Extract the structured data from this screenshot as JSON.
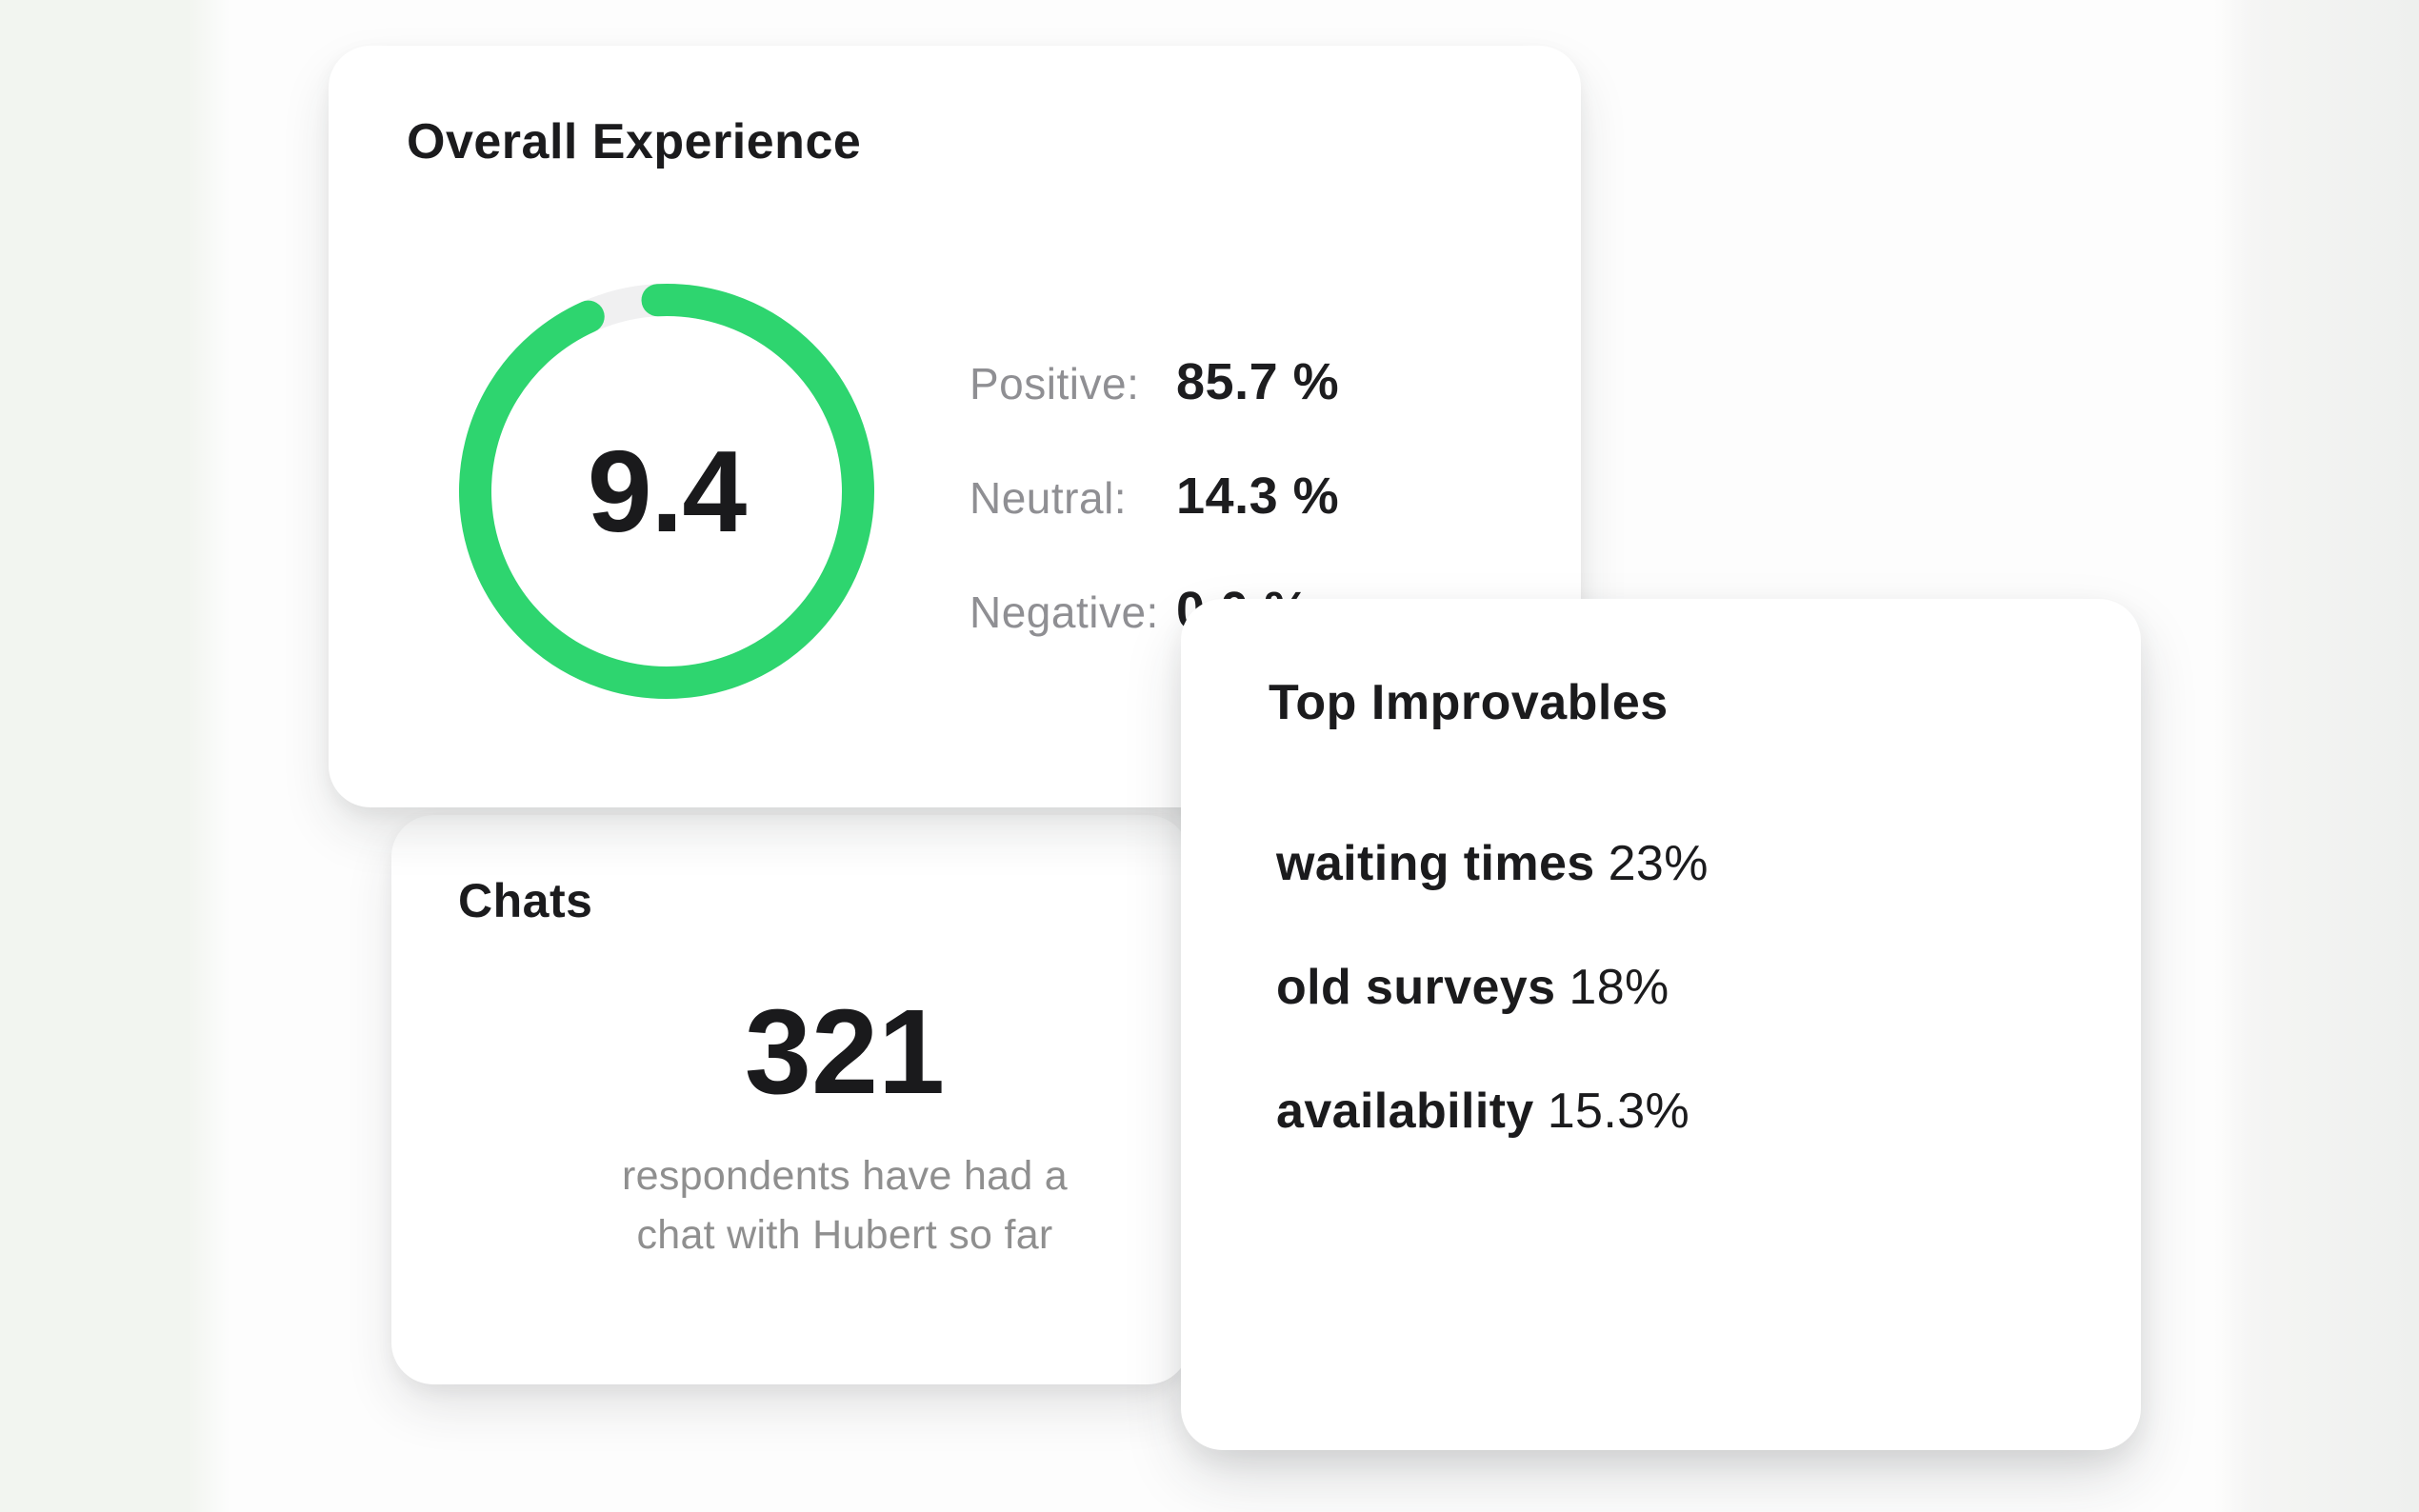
{
  "cards": {
    "overall": {
      "title": "Overall Experience",
      "score": "9.4",
      "gauge": {
        "type": "donut-progress",
        "percent": 94,
        "color": "#2ed56f",
        "track_color": "#f0f0f1"
      },
      "stats": [
        {
          "label": "Positive:",
          "value": "85.7 %"
        },
        {
          "label": "Neutral:",
          "value": "14.3 %"
        },
        {
          "label": "Negative:",
          "value": "0.0 %"
        }
      ]
    },
    "chats": {
      "title": "Chats",
      "count": "321",
      "caption_line1": "respondents have had a",
      "caption_line2": "chat with Hubert so far"
    },
    "improvables": {
      "title": "Top Improvables",
      "items": [
        {
          "name": "waiting times",
          "value": "23%"
        },
        {
          "name": "old surveys",
          "value": "18%"
        },
        {
          "name": "availability",
          "value": "15.3%"
        }
      ]
    }
  },
  "colors": {
    "accent_green": "#2ed56f",
    "gauge_track": "#f0f0f1",
    "text_dark": "#1b1b1d",
    "text_gray": "#8f8f93",
    "card_background": "#ffffff",
    "background_left": "#f2f5f0",
    "background_right": "#eef0ee"
  }
}
